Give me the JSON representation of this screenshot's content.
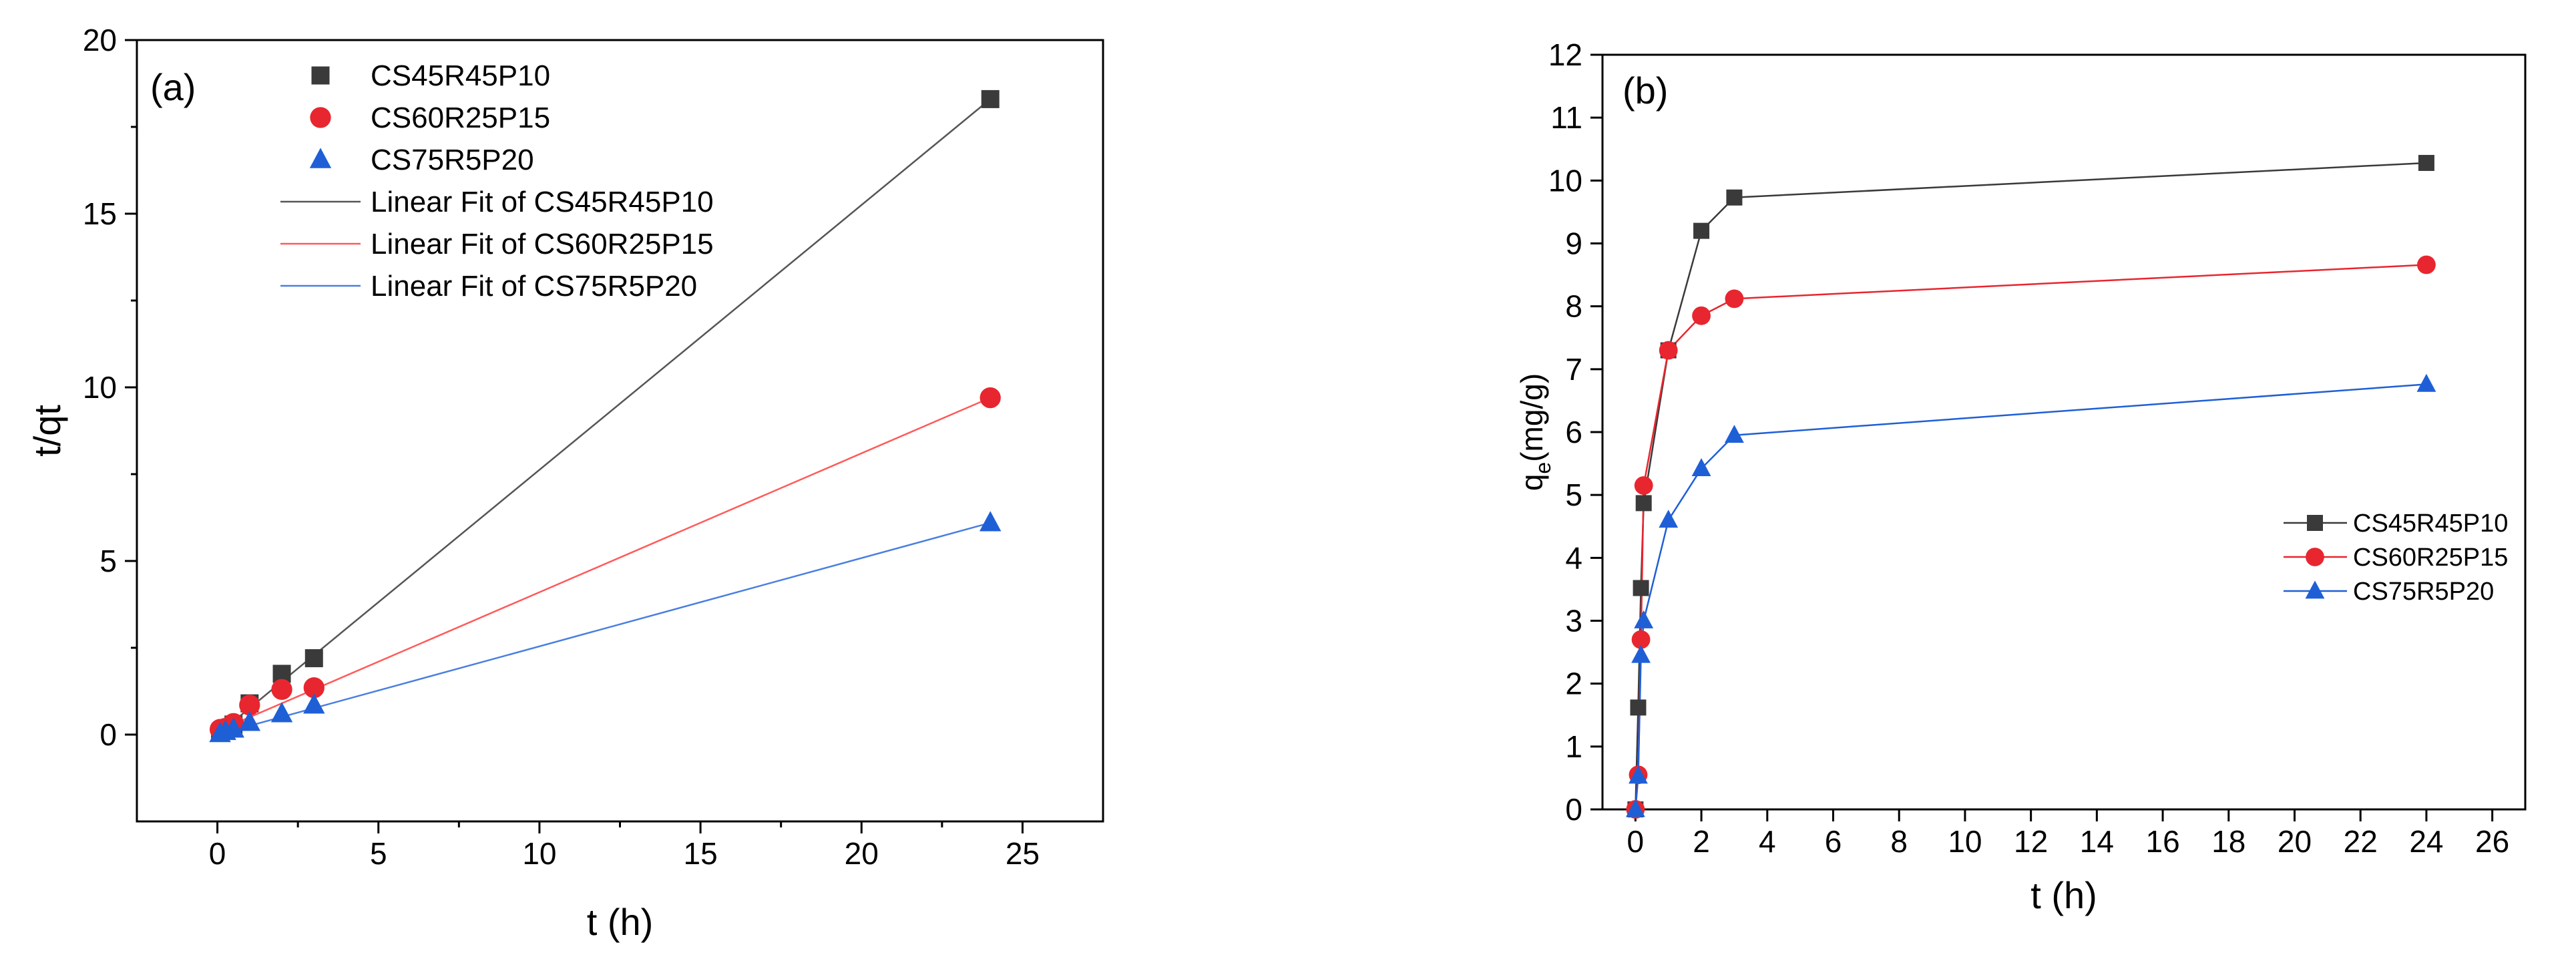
{
  "chart_data": [
    {
      "panel": "(a)",
      "type": "scatter",
      "title": "",
      "xlabel": "t (h)",
      "ylabel": "t/qt",
      "xlim": [
        -2.5,
        27.5
      ],
      "ylim": [
        -2.5,
        20
      ],
      "x_ticks": [
        0,
        5,
        10,
        15,
        20,
        25
      ],
      "y_ticks": [
        0,
        5,
        10,
        15,
        20
      ],
      "x_tick_labels": [
        "0",
        "5",
        "10",
        "15",
        "20",
        "25"
      ],
      "y_tick_labels": [
        "0",
        "5",
        "10",
        "15",
        "20"
      ],
      "grid": false,
      "legend_position": "top-center",
      "series": [
        {
          "name": "CS45R45P10",
          "marker": "square",
          "color": "#3a3a3a",
          "x": [
            0.0833,
            0.25,
            0.5,
            1,
            2,
            3,
            24
          ],
          "y": [
            0.05,
            0.16,
            0.29,
            0.9,
            1.75,
            2.2,
            18.3
          ]
        },
        {
          "name": "CS60R25P15",
          "marker": "circle",
          "color": "#e8262f",
          "x": [
            0.0833,
            0.25,
            0.5,
            1,
            2,
            3,
            24
          ],
          "y": [
            0.15,
            0.18,
            0.32,
            0.85,
            1.3,
            1.35,
            9.7
          ]
        },
        {
          "name": "CS75R5P20",
          "marker": "triangle",
          "color": "#1f5fd6",
          "x": [
            0.0833,
            0.25,
            0.5,
            1,
            2,
            3,
            24
          ],
          "y": [
            0.03,
            0.09,
            0.16,
            0.35,
            0.6,
            0.85,
            6.1
          ]
        },
        {
          "name": "Linear Fit of CS45R45P10",
          "type": "line",
          "color": "#555555",
          "x": [
            0,
            24
          ],
          "y": [
            0.0,
            18.3
          ]
        },
        {
          "name": "Linear Fit of CS60R25P15",
          "type": "line",
          "color": "#ff5a5a",
          "x": [
            0,
            24
          ],
          "y": [
            0.1,
            9.7
          ]
        },
        {
          "name": "Linear Fit of CS75R5P20",
          "type": "line",
          "color": "#4a7fe0",
          "x": [
            0,
            24
          ],
          "y": [
            0.0,
            6.1
          ]
        }
      ]
    },
    {
      "panel": "(b)",
      "type": "line",
      "title": "",
      "xlabel": "t (h)",
      "ylabel": "qe(mg/g)",
      "ylabel_main": "q",
      "ylabel_sub": "e",
      "ylabel_rest": "(mg/g)",
      "xlim": [
        -1,
        27
      ],
      "ylim": [
        0,
        12
      ],
      "x_ticks": [
        0,
        2,
        4,
        6,
        8,
        10,
        12,
        14,
        16,
        18,
        20,
        22,
        24,
        26
      ],
      "y_ticks": [
        0,
        1,
        2,
        3,
        4,
        5,
        6,
        7,
        8,
        9,
        10,
        11,
        12
      ],
      "x_tick_labels": [
        "0",
        "2",
        "4",
        "6",
        "8",
        "10",
        "12",
        "14",
        "16",
        "18",
        "20",
        "22",
        "24",
        "26"
      ],
      "y_tick_labels": [
        "0",
        "1",
        "2",
        "3",
        "4",
        "5",
        "6",
        "7",
        "8",
        "9",
        "10",
        "11",
        "12"
      ],
      "grid": false,
      "legend_position": "center-right",
      "series": [
        {
          "name": "CS45R45P10",
          "marker": "square",
          "color": "#3a3a3a",
          "x": [
            0,
            0.0833,
            0.1667,
            0.25,
            1,
            2,
            3,
            24
          ],
          "y": [
            0,
            1.62,
            3.52,
            4.87,
            7.3,
            9.2,
            9.73,
            10.28
          ]
        },
        {
          "name": "CS60R25P15",
          "marker": "circle",
          "color": "#e8262f",
          "x": [
            0,
            0.0833,
            0.1667,
            0.25,
            1,
            2,
            3,
            24
          ],
          "y": [
            0,
            0.55,
            2.7,
            5.15,
            7.3,
            7.85,
            8.12,
            8.66
          ]
        },
        {
          "name": "CS75R5P20",
          "marker": "triangle",
          "color": "#1f5fd6",
          "x": [
            0,
            0.0833,
            0.1667,
            0.25,
            1,
            2,
            3,
            24
          ],
          "y": [
            0,
            0.53,
            2.45,
            3.0,
            4.6,
            5.42,
            5.95,
            6.76
          ]
        }
      ]
    }
  ]
}
